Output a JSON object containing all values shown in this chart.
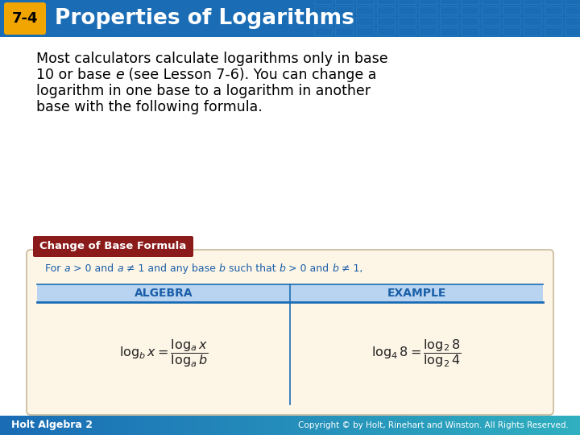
{
  "title_badge": "7-4",
  "title_text": "Properties of Logarithms",
  "header_bg_color": "#1a6cb5",
  "badge_bg_color": "#f0a500",
  "title_text_color": "#ffffff",
  "body_bg_color": "#ffffff",
  "formula_box_bg": "#fdf5e6",
  "formula_box_border": "#c8b89a",
  "formula_label_bg": "#8b1a1a",
  "formula_label_text": "Change of Base Formula",
  "formula_label_color": "#ffffff",
  "algebra_header": "ALGEBRA",
  "example_header": "EXAMPLE",
  "table_header_bg": "#b8d4f0",
  "table_border_color": "#1a6cb5",
  "footer_left": "Holt Algebra 2",
  "footer_right": "Copyright © by Holt, Rinehart and Winston. All Rights Reserved.",
  "footer_text_color": "#ffffff",
  "blue_text_color": "#1a5fa8"
}
